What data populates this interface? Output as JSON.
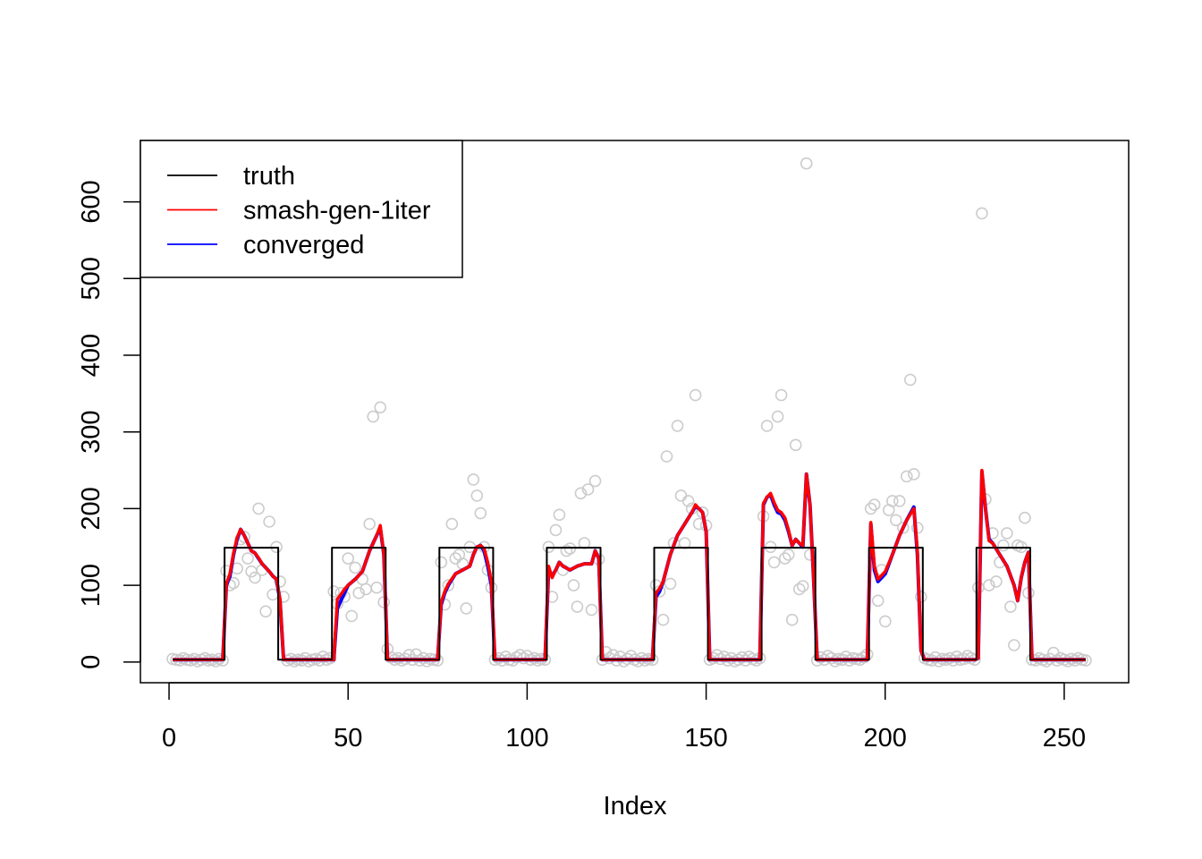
{
  "chart_data": {
    "type": "scatter",
    "title": "",
    "xlabel": "Index",
    "ylabel": "",
    "xlim": [
      -8,
      268
    ],
    "ylim": [
      -27,
      680
    ],
    "xticks": [
      0,
      50,
      100,
      150,
      200,
      250
    ],
    "yticks": [
      0,
      100,
      200,
      300,
      400,
      500,
      600
    ],
    "grid": false,
    "legend_position": "top-left",
    "legend": [
      {
        "label": "truth",
        "color": "#000000"
      },
      {
        "label": "smash-gen-1iter",
        "color": "#ff0000"
      },
      {
        "label": "converged",
        "color": "#0000ff"
      }
    ],
    "points_color": "#cccccc",
    "points": [
      [
        1,
        4
      ],
      [
        2,
        3
      ],
      [
        3,
        2
      ],
      [
        4,
        5
      ],
      [
        5,
        3
      ],
      [
        6,
        2
      ],
      [
        7,
        4
      ],
      [
        8,
        1
      ],
      [
        9,
        3
      ],
      [
        10,
        5
      ],
      [
        11,
        2
      ],
      [
        12,
        3
      ],
      [
        13,
        1
      ],
      [
        14,
        4
      ],
      [
        15,
        2
      ],
      [
        16,
        119
      ],
      [
        17,
        100
      ],
      [
        18,
        103
      ],
      [
        19,
        122
      ],
      [
        20,
        160
      ],
      [
        21,
        163
      ],
      [
        22,
        135
      ],
      [
        23,
        118
      ],
      [
        24,
        110
      ],
      [
        25,
        200
      ],
      [
        26,
        120
      ],
      [
        27,
        66
      ],
      [
        28,
        183
      ],
      [
        29,
        88
      ],
      [
        30,
        150
      ],
      [
        31,
        105
      ],
      [
        32,
        85
      ],
      [
        33,
        2
      ],
      [
        34,
        4
      ],
      [
        35,
        1
      ],
      [
        36,
        3
      ],
      [
        37,
        2
      ],
      [
        38,
        5
      ],
      [
        39,
        1
      ],
      [
        40,
        3
      ],
      [
        41,
        4
      ],
      [
        42,
        2
      ],
      [
        43,
        7
      ],
      [
        44,
        3
      ],
      [
        45,
        5
      ],
      [
        46,
        92
      ],
      [
        47,
        76
      ],
      [
        48,
        90
      ],
      [
        49,
        85
      ],
      [
        50,
        135
      ],
      [
        51,
        60
      ],
      [
        52,
        123
      ],
      [
        53,
        90
      ],
      [
        54,
        108
      ],
      [
        55,
        95
      ],
      [
        56,
        180
      ],
      [
        57,
        320
      ],
      [
        58,
        97
      ],
      [
        59,
        332
      ],
      [
        60,
        78
      ],
      [
        61,
        17
      ],
      [
        62,
        6
      ],
      [
        63,
        3
      ],
      [
        64,
        5
      ],
      [
        65,
        2
      ],
      [
        66,
        4
      ],
      [
        67,
        9
      ],
      [
        68,
        3
      ],
      [
        69,
        10
      ],
      [
        70,
        2
      ],
      [
        71,
        5
      ],
      [
        72,
        1
      ],
      [
        73,
        4
      ],
      [
        74,
        3
      ],
      [
        75,
        2
      ],
      [
        76,
        130
      ],
      [
        77,
        75
      ],
      [
        78,
        100
      ],
      [
        79,
        180
      ],
      [
        80,
        135
      ],
      [
        81,
        140
      ],
      [
        82,
        128
      ],
      [
        83,
        70
      ],
      [
        84,
        150
      ],
      [
        85,
        238
      ],
      [
        86,
        217
      ],
      [
        87,
        194
      ],
      [
        88,
        150
      ],
      [
        89,
        120
      ],
      [
        90,
        97
      ],
      [
        91,
        3
      ],
      [
        92,
        5
      ],
      [
        93,
        2
      ],
      [
        94,
        7
      ],
      [
        95,
        3
      ],
      [
        96,
        2
      ],
      [
        97,
        6
      ],
      [
        98,
        9
      ],
      [
        99,
        5
      ],
      [
        100,
        8
      ],
      [
        101,
        3
      ],
      [
        102,
        5
      ],
      [
        103,
        2
      ],
      [
        104,
        4
      ],
      [
        105,
        3
      ],
      [
        106,
        150
      ],
      [
        107,
        85
      ],
      [
        108,
        172
      ],
      [
        109,
        192
      ],
      [
        110,
        120
      ],
      [
        111,
        145
      ],
      [
        112,
        148
      ],
      [
        113,
        100
      ],
      [
        114,
        72
      ],
      [
        115,
        220
      ],
      [
        116,
        155
      ],
      [
        117,
        225
      ],
      [
        118,
        68
      ],
      [
        119,
        236
      ],
      [
        120,
        134
      ],
      [
        121,
        3
      ],
      [
        122,
        13
      ],
      [
        123,
        5
      ],
      [
        124,
        9
      ],
      [
        125,
        2
      ],
      [
        126,
        7
      ],
      [
        127,
        1
      ],
      [
        128,
        4
      ],
      [
        129,
        8
      ],
      [
        130,
        3
      ],
      [
        131,
        1
      ],
      [
        132,
        5
      ],
      [
        133,
        2
      ],
      [
        134,
        4
      ],
      [
        135,
        3
      ],
      [
        136,
        100
      ],
      [
        137,
        92
      ],
      [
        138,
        55
      ],
      [
        139,
        268
      ],
      [
        140,
        102
      ],
      [
        141,
        155
      ],
      [
        142,
        308
      ],
      [
        143,
        217
      ],
      [
        144,
        155
      ],
      [
        145,
        210
      ],
      [
        146,
        200
      ],
      [
        147,
        348
      ],
      [
        148,
        180
      ],
      [
        149,
        195
      ],
      [
        150,
        178
      ],
      [
        151,
        3
      ],
      [
        152,
        5
      ],
      [
        153,
        9
      ],
      [
        154,
        4
      ],
      [
        155,
        7
      ],
      [
        156,
        2
      ],
      [
        157,
        5
      ],
      [
        158,
        1
      ],
      [
        159,
        3
      ],
      [
        160,
        6
      ],
      [
        161,
        2
      ],
      [
        162,
        7
      ],
      [
        163,
        4
      ],
      [
        164,
        2
      ],
      [
        165,
        5
      ],
      [
        166,
        190
      ],
      [
        167,
        308
      ],
      [
        168,
        150
      ],
      [
        169,
        130
      ],
      [
        170,
        320
      ],
      [
        171,
        348
      ],
      [
        172,
        135
      ],
      [
        173,
        140
      ],
      [
        174,
        55
      ],
      [
        175,
        283
      ],
      [
        176,
        95
      ],
      [
        177,
        99
      ],
      [
        178,
        650
      ],
      [
        179,
        140
      ],
      [
        181,
        2
      ],
      [
        182,
        6
      ],
      [
        183,
        3
      ],
      [
        184,
        8
      ],
      [
        185,
        5
      ],
      [
        186,
        1
      ],
      [
        187,
        4
      ],
      [
        188,
        3
      ],
      [
        189,
        7
      ],
      [
        190,
        2
      ],
      [
        191,
        5
      ],
      [
        192,
        4
      ],
      [
        193,
        3
      ],
      [
        194,
        6
      ],
      [
        195,
        10
      ],
      [
        196,
        200
      ],
      [
        197,
        205
      ],
      [
        198,
        80
      ],
      [
        199,
        120
      ],
      [
        200,
        53
      ],
      [
        201,
        198
      ],
      [
        202,
        210
      ],
      [
        203,
        185
      ],
      [
        204,
        210
      ],
      [
        205,
        175
      ],
      [
        206,
        242
      ],
      [
        207,
        368
      ],
      [
        208,
        245
      ],
      [
        209,
        175
      ],
      [
        210,
        85
      ],
      [
        211,
        5
      ],
      [
        212,
        3
      ],
      [
        213,
        2
      ],
      [
        214,
        6
      ],
      [
        215,
        1
      ],
      [
        216,
        4
      ],
      [
        217,
        3
      ],
      [
        218,
        5
      ],
      [
        219,
        2
      ],
      [
        220,
        7
      ],
      [
        221,
        3
      ],
      [
        222,
        4
      ],
      [
        223,
        8
      ],
      [
        224,
        5
      ],
      [
        225,
        3
      ],
      [
        226,
        97
      ],
      [
        227,
        585
      ],
      [
        228,
        212
      ],
      [
        229,
        100
      ],
      [
        230,
        168
      ],
      [
        231,
        105
      ],
      [
        232,
        130
      ],
      [
        233,
        152
      ],
      [
        234,
        168
      ],
      [
        235,
        72
      ],
      [
        236,
        22
      ],
      [
        237,
        152
      ],
      [
        238,
        150
      ],
      [
        239,
        188
      ],
      [
        240,
        90
      ],
      [
        241,
        3
      ],
      [
        242,
        2
      ],
      [
        243,
        5
      ],
      [
        244,
        3
      ],
      [
        245,
        1
      ],
      [
        246,
        4
      ],
      [
        247,
        12
      ],
      [
        248,
        2
      ],
      [
        249,
        5
      ],
      [
        250,
        3
      ],
      [
        251,
        1
      ],
      [
        252,
        4
      ],
      [
        253,
        2
      ],
      [
        254,
        5
      ],
      [
        255,
        3
      ],
      [
        256,
        2
      ]
    ],
    "series": [
      {
        "name": "truth",
        "color": "#000000",
        "x": [
          1,
          15.5,
          15.5,
          30.5,
          30.5,
          45.5,
          45.5,
          60.5,
          60.5,
          75.5,
          75.5,
          90.5,
          90.5,
          105.5,
          105.5,
          120.5,
          120.5,
          135.5,
          135.5,
          150.5,
          150.5,
          165.5,
          165.5,
          180.5,
          180.5,
          195.5,
          195.5,
          210.5,
          210.5,
          225.5,
          225.5,
          240.5,
          240.5,
          256
        ],
        "y": [
          3,
          3,
          149,
          149,
          3,
          3,
          149,
          149,
          3,
          3,
          149,
          149,
          3,
          3,
          149,
          149,
          3,
          3,
          149,
          149,
          3,
          3,
          149,
          149,
          3,
          3,
          149,
          149,
          3,
          3,
          149,
          149,
          3,
          3
        ]
      },
      {
        "name": "converged",
        "color": "#0000ff",
        "x": [
          1,
          15,
          16,
          17,
          18,
          19,
          20,
          21,
          22,
          23,
          24,
          25,
          26,
          27,
          28,
          29,
          30,
          31,
          32,
          46,
          47,
          48,
          49,
          50,
          52,
          54,
          56,
          58,
          59,
          60,
          61,
          75,
          76,
          77,
          78,
          80,
          82,
          84,
          85,
          86,
          87,
          88,
          89,
          90,
          91,
          105,
          106,
          107,
          108,
          109,
          110,
          112,
          114,
          116,
          118,
          119,
          120,
          121,
          135,
          136,
          137,
          138,
          140,
          142,
          144,
          146,
          147,
          148,
          149,
          150,
          151,
          165,
          166,
          167,
          168,
          169,
          170,
          171,
          172,
          173,
          174,
          175,
          176,
          177,
          178,
          179,
          180,
          181,
          195,
          196,
          197,
          198,
          200,
          202,
          204,
          206,
          208,
          209,
          210,
          211,
          225,
          226,
          227,
          228,
          229,
          230,
          232,
          234,
          236,
          237,
          238,
          239,
          240,
          241,
          256
        ],
        "y": [
          3,
          3,
          100,
          112,
          140,
          160,
          173,
          165,
          155,
          145,
          142,
          135,
          128,
          123,
          118,
          112,
          108,
          80,
          3,
          3,
          70,
          80,
          90,
          100,
          108,
          118,
          145,
          165,
          175,
          140,
          3,
          3,
          75,
          90,
          100,
          115,
          120,
          125,
          140,
          150,
          152,
          145,
          125,
          100,
          3,
          3,
          120,
          112,
          120,
          130,
          125,
          120,
          125,
          128,
          128,
          145,
          135,
          3,
          3,
          85,
          92,
          105,
          140,
          165,
          180,
          195,
          203,
          200,
          195,
          170,
          3,
          3,
          205,
          215,
          218,
          205,
          195,
          193,
          185,
          170,
          152,
          160,
          155,
          150,
          245,
          205,
          110,
          3,
          3,
          180,
          120,
          105,
          115,
          140,
          165,
          185,
          202,
          140,
          15,
          3,
          3,
          5,
          248,
          200,
          160,
          155,
          140,
          125,
          100,
          80,
          110,
          130,
          143,
          3,
          3
        ]
      },
      {
        "name": "smash-gen-1iter",
        "color": "#ff0000",
        "x": [
          1,
          15,
          16,
          17,
          18,
          19,
          20,
          21,
          22,
          23,
          24,
          25,
          26,
          27,
          28,
          29,
          30,
          31,
          32,
          46,
          47,
          48,
          49,
          50,
          52,
          54,
          56,
          58,
          59,
          60,
          61,
          75,
          76,
          77,
          78,
          80,
          82,
          84,
          85,
          86,
          87,
          88,
          89,
          90,
          91,
          105,
          106,
          107,
          108,
          109,
          110,
          112,
          114,
          116,
          118,
          119,
          120,
          121,
          135,
          136,
          137,
          138,
          140,
          142,
          144,
          146,
          147,
          148,
          149,
          150,
          151,
          165,
          166,
          167,
          168,
          169,
          170,
          171,
          172,
          173,
          174,
          175,
          176,
          177,
          178,
          179,
          180,
          181,
          195,
          196,
          197,
          198,
          200,
          202,
          204,
          206,
          208,
          209,
          210,
          211,
          225,
          226,
          227,
          228,
          229,
          230,
          232,
          234,
          236,
          237,
          238,
          239,
          240,
          241,
          256
        ],
        "y": [
          3,
          3,
          102,
          115,
          142,
          162,
          173,
          165,
          155,
          145,
          142,
          136,
          128,
          123,
          118,
          112,
          108,
          82,
          3,
          3,
          82,
          88,
          95,
          100,
          108,
          118,
          145,
          165,
          178,
          140,
          3,
          3,
          78,
          92,
          102,
          115,
          120,
          125,
          140,
          150,
          152,
          148,
          130,
          105,
          3,
          3,
          125,
          110,
          120,
          130,
          125,
          120,
          125,
          128,
          128,
          145,
          135,
          3,
          3,
          90,
          96,
          105,
          140,
          165,
          180,
          195,
          205,
          200,
          195,
          170,
          3,
          3,
          207,
          215,
          220,
          208,
          198,
          195,
          188,
          172,
          152,
          160,
          155,
          152,
          245,
          205,
          110,
          3,
          3,
          182,
          125,
          108,
          118,
          140,
          165,
          185,
          200,
          145,
          15,
          3,
          3,
          5,
          250,
          200,
          158,
          155,
          140,
          125,
          100,
          80,
          110,
          130,
          143,
          3,
          3
        ]
      }
    ]
  }
}
